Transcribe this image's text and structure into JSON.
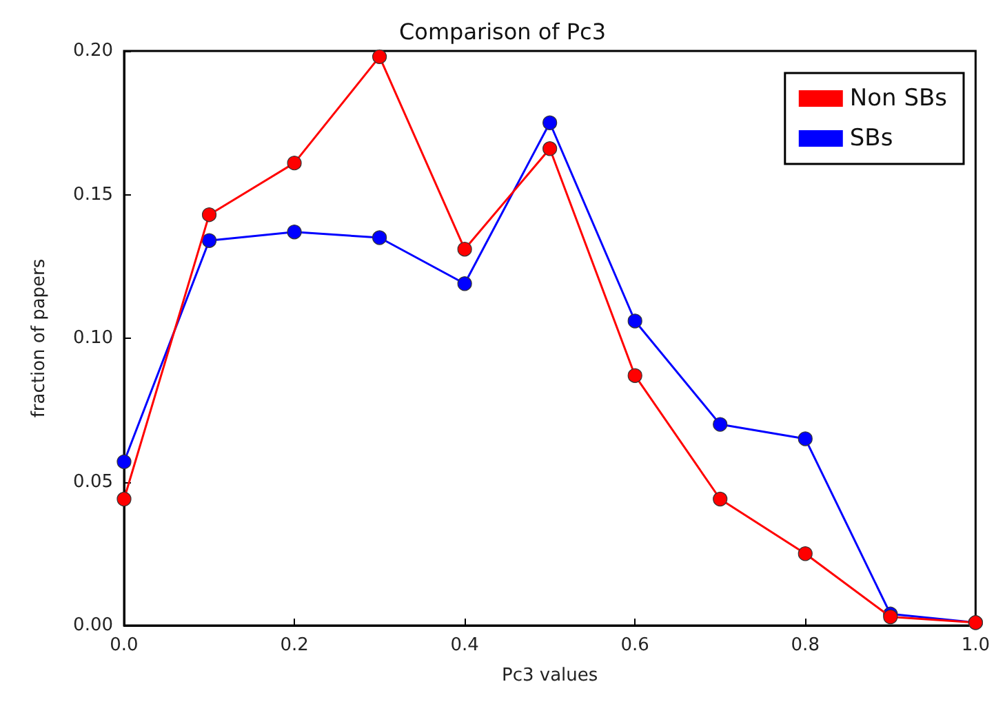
{
  "chart_data": {
    "type": "line",
    "title": "Comparison of Pc3",
    "xlabel": "Pc3 values",
    "ylabel": "fraction of papers",
    "x": [
      0,
      0.1,
      0.2,
      0.3,
      0.4,
      0.5,
      0.6,
      0.7,
      0.8,
      0.9,
      1.0
    ],
    "series": [
      {
        "name": "Non SBs",
        "color": "#ff0000",
        "values": [
          0.044,
          0.143,
          0.161,
          0.198,
          0.131,
          0.166,
          0.087,
          0.044,
          0.025,
          0.003,
          0.001
        ]
      },
      {
        "name": "SBs",
        "color": "#0000ff",
        "values": [
          0.057,
          0.134,
          0.137,
          0.135,
          0.119,
          0.175,
          0.106,
          0.07,
          0.065,
          0.004,
          0.001
        ]
      }
    ],
    "xlim": [
      0,
      1
    ],
    "xticks": [
      {
        "value": 0,
        "label": "0.0"
      },
      {
        "value": 0.2,
        "label": "0.2"
      },
      {
        "value": 0.4,
        "label": "0.4"
      },
      {
        "value": 0.6,
        "label": "0.6"
      },
      {
        "value": 0.8,
        "label": "0.8"
      },
      {
        "value": 1,
        "label": "1.0"
      }
    ],
    "ylim": [
      0,
      0.2
    ],
    "yticks": [
      {
        "value": 0,
        "label": "0.00"
      },
      {
        "value": 0.05,
        "label": "0.05"
      },
      {
        "value": 0.1,
        "label": "0.10"
      },
      {
        "value": 0.15,
        "label": "0.15"
      },
      {
        "value": 0.2,
        "label": "0.20"
      }
    ],
    "grid": false,
    "legend": "top right",
    "marker": "circle",
    "line_style": "solid"
  }
}
